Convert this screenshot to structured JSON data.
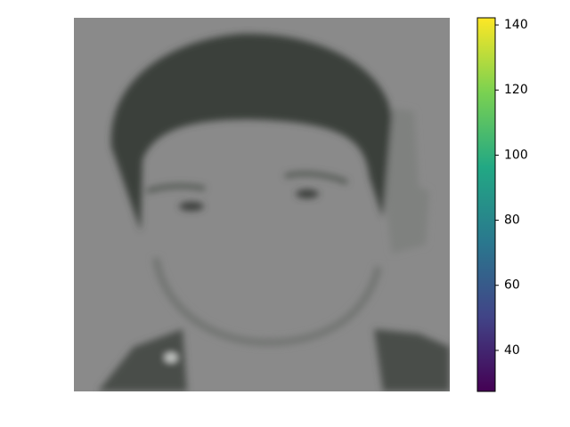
{
  "chart_data": {
    "type": "image",
    "colorbar": {
      "clim": [
        27.4,
        142.2
      ],
      "ticks": [
        40,
        60,
        80,
        100,
        120,
        140
      ],
      "colors": [
        "#440154",
        "#414487",
        "#2a788e",
        "#22a884",
        "#7ad151",
        "#fde725"
      ]
    }
  }
}
